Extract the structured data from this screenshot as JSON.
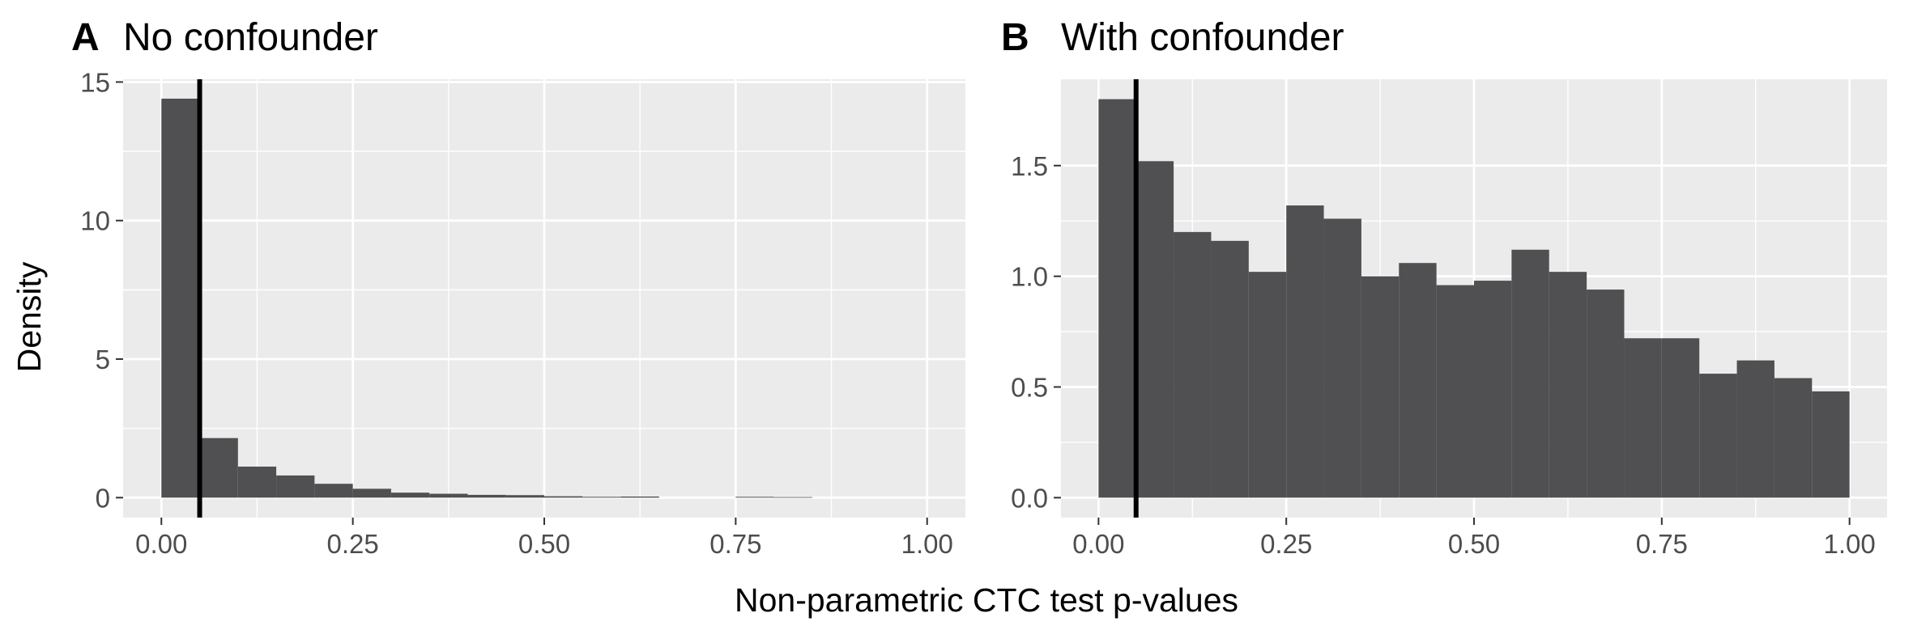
{
  "figure": {
    "ylabel": "Density",
    "xlabel": "Non-parametric CTC test p-values"
  },
  "chart_data": [
    {
      "type": "bar",
      "panel": "A",
      "title": "No confounder",
      "bin_width": 0.05,
      "bin_starts": [
        0.0,
        0.05,
        0.1,
        0.15,
        0.2,
        0.25,
        0.3,
        0.35,
        0.4,
        0.45,
        0.5,
        0.55,
        0.6,
        0.65,
        0.7,
        0.75,
        0.8,
        0.85,
        0.9,
        0.95
      ],
      "values": [
        14.4,
        2.15,
        1.12,
        0.8,
        0.5,
        0.32,
        0.18,
        0.14,
        0.1,
        0.09,
        0.05,
        0.03,
        0.04,
        0.0,
        0.0,
        0.03,
        0.02,
        0.0,
        0.0,
        0.0
      ],
      "xlim": [
        -0.05,
        1.05
      ],
      "ylim": [
        -0.72,
        15.1
      ],
      "x_ticks": [
        0,
        0.25,
        0.5,
        0.75,
        1
      ],
      "x_tick_labels": [
        "0.00",
        "0.25",
        "0.50",
        "0.75",
        "1.00"
      ],
      "y_ticks": [
        0,
        5,
        10,
        15
      ],
      "y_tick_labels": [
        "0",
        "5",
        "10",
        "15"
      ],
      "vline": 0.05,
      "grid": true,
      "bar_color": "#505052",
      "panel_bg": "#ebebeb"
    },
    {
      "type": "bar",
      "panel": "B",
      "title": "With confounder",
      "bin_width": 0.05,
      "bin_starts": [
        0.0,
        0.05,
        0.1,
        0.15,
        0.2,
        0.25,
        0.3,
        0.35,
        0.4,
        0.45,
        0.5,
        0.55,
        0.6,
        0.65,
        0.7,
        0.75,
        0.8,
        0.85,
        0.9,
        0.95
      ],
      "values": [
        1.8,
        1.52,
        1.2,
        1.16,
        1.02,
        1.32,
        1.26,
        1.0,
        1.06,
        0.96,
        0.98,
        1.12,
        1.02,
        0.94,
        0.72,
        0.72,
        0.56,
        0.62,
        0.54,
        0.48
      ],
      "xlim": [
        -0.05,
        1.05
      ],
      "ylim": [
        -0.09,
        1.89
      ],
      "x_ticks": [
        0,
        0.25,
        0.5,
        0.75,
        1
      ],
      "x_tick_labels": [
        "0.00",
        "0.25",
        "0.50",
        "0.75",
        "1.00"
      ],
      "y_ticks": [
        0,
        0.5,
        1,
        1.5
      ],
      "y_tick_labels": [
        "0.0",
        "0.5",
        "1.0",
        "1.5"
      ],
      "vline": 0.05,
      "grid": true,
      "bar_color": "#505052",
      "panel_bg": "#ebebeb"
    }
  ]
}
